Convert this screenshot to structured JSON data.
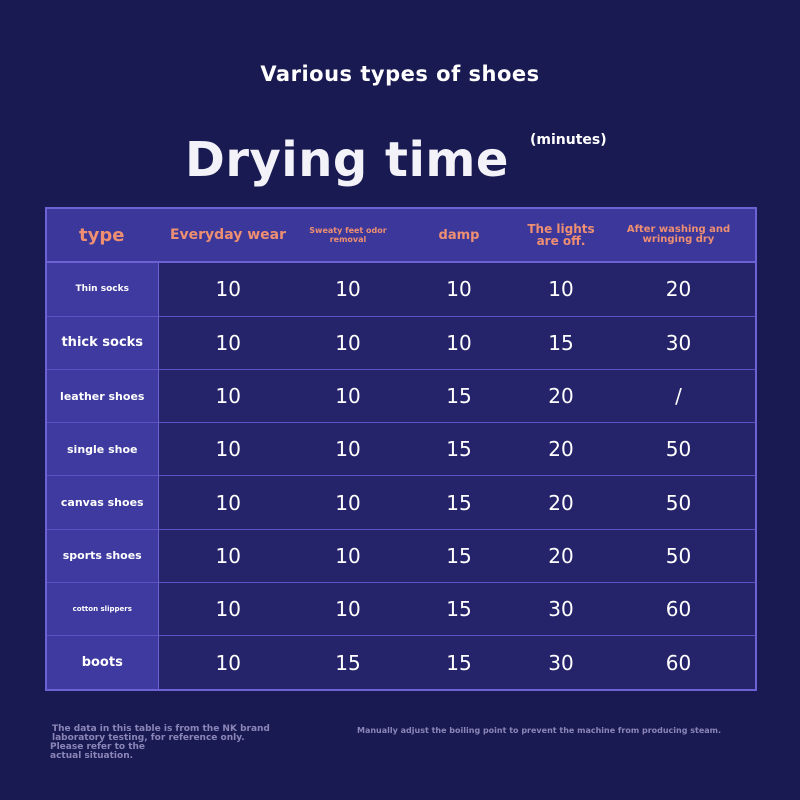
{
  "header": {
    "subtitle": "Various types of shoes",
    "title": "Drying time",
    "unit": "(minutes)"
  },
  "table": {
    "type_header": "type",
    "columns": [
      "Everyday wear",
      "Sweaty feet odor removal",
      "damp",
      "The lights are off.",
      "After washing and wringing dry"
    ],
    "rows": [
      {
        "type": "Thin socks",
        "values": [
          "10",
          "10",
          "10",
          "10",
          "20"
        ]
      },
      {
        "type": "thick socks",
        "values": [
          "10",
          "10",
          "10",
          "15",
          "30"
        ]
      },
      {
        "type": "leather shoes",
        "values": [
          "10",
          "10",
          "15",
          "20",
          "/"
        ]
      },
      {
        "type": "single shoe",
        "values": [
          "10",
          "10",
          "15",
          "20",
          "50"
        ]
      },
      {
        "type": "canvas shoes",
        "values": [
          "10",
          "10",
          "15",
          "20",
          "50"
        ]
      },
      {
        "type": "sports shoes",
        "values": [
          "10",
          "10",
          "15",
          "20",
          "50"
        ]
      },
      {
        "type": "cotton slippers",
        "values": [
          "10",
          "10",
          "15",
          "30",
          "60"
        ]
      },
      {
        "type": "boots",
        "values": [
          "10",
          "15",
          "15",
          "30",
          "60"
        ]
      }
    ]
  },
  "notes": {
    "source": "The data in this table is from the NK brand laboratory testing, for reference only.",
    "actual": "Please refer to the actual situation.",
    "boiling": "Manually adjust the boiling point to prevent the machine from producing steam."
  },
  "colors": {
    "background": "#1a1a52",
    "header_text": "#ee8f72",
    "table_border": "#6d62d4",
    "type_cell": "#3e3a9f",
    "value_cell": "#25236a"
  }
}
